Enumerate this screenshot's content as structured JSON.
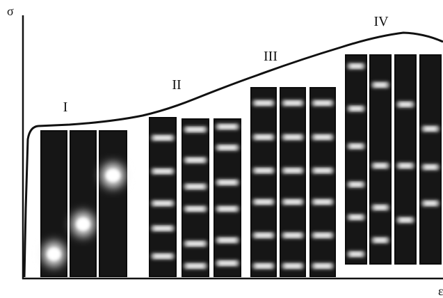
{
  "axes": {
    "y_label": "σ",
    "x_label": "ε"
  },
  "stages": [
    {
      "label": "I"
    },
    {
      "label": "II"
    },
    {
      "label": "III"
    },
    {
      "label": "IV"
    }
  ]
}
